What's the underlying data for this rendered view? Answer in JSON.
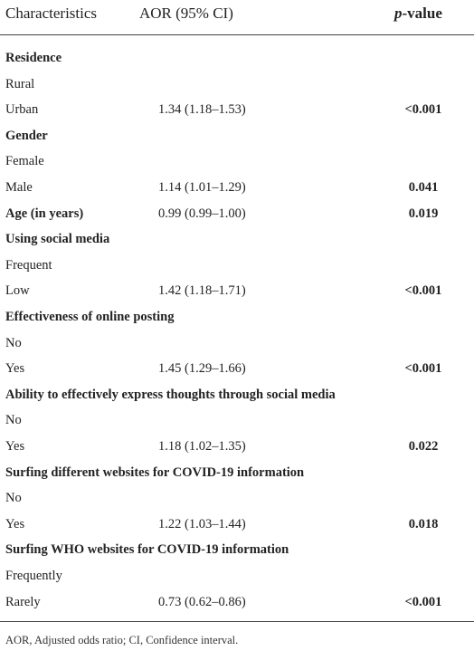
{
  "table": {
    "header": {
      "characteristics": "Characteristics",
      "aor": "AOR (95% CI)",
      "p_italic": "p",
      "p_rest": "-value"
    },
    "rows": [
      {
        "label": "Residence",
        "bold": true
      },
      {
        "label": "Rural"
      },
      {
        "label": "Urban",
        "aor": "1.34 (1.18–1.53)",
        "p": "<0.001"
      },
      {
        "label": "Gender",
        "bold": true
      },
      {
        "label": "Female"
      },
      {
        "label": "Male",
        "aor": "1.14 (1.01–1.29)",
        "p": "0.041"
      },
      {
        "label": "Age (in years)",
        "bold": true,
        "aor": "0.99 (0.99–1.00)",
        "p": "0.019"
      },
      {
        "label": "Using social media",
        "bold": true
      },
      {
        "label": "Frequent"
      },
      {
        "label": "Low",
        "aor": "1.42 (1.18–1.71)",
        "p": "<0.001"
      },
      {
        "label": "Effectiveness of online posting",
        "bold": true
      },
      {
        "label": "No"
      },
      {
        "label": "Yes",
        "aor": "1.45 (1.29–1.66)",
        "p": "<0.001"
      },
      {
        "label": "Ability to effectively express thoughts through social media",
        "bold": true
      },
      {
        "label": "No"
      },
      {
        "label": "Yes",
        "aor": "1.18 (1.02–1.35)",
        "p": "0.022"
      },
      {
        "label": "Surfing different websites for COVID-19 information",
        "bold": true
      },
      {
        "label": "No"
      },
      {
        "label": "Yes",
        "aor": "1.22 (1.03–1.44)",
        "p": "0.018"
      },
      {
        "label": "Surfing WHO websites for COVID-19 information",
        "bold": true
      },
      {
        "label": "Frequently"
      },
      {
        "label": "Rarely",
        "aor": "0.73 (0.62–0.86)",
        "p": "<0.001"
      }
    ],
    "footnote": "AOR, Adjusted odds ratio; CI, Confidence interval."
  }
}
